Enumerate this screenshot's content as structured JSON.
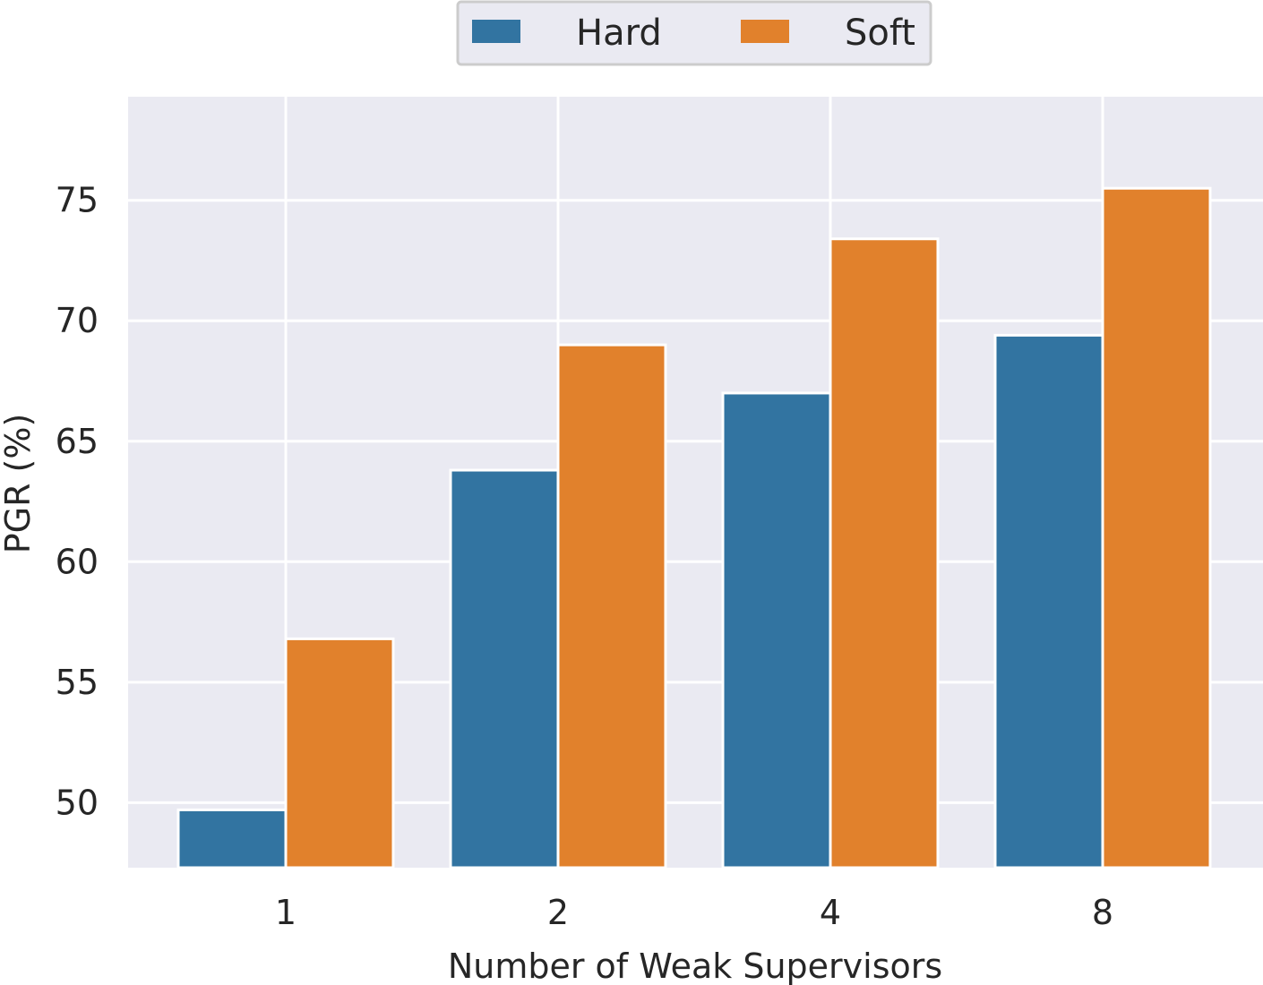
{
  "chart_data": {
    "type": "bar",
    "title": "",
    "xlabel": "Number of Weak Supervisors",
    "ylabel": "PGR (%)",
    "categories": [
      "1",
      "2",
      "4",
      "8"
    ],
    "series": [
      {
        "name": "Hard",
        "color": "#3274a1",
        "values": [
          49.7,
          63.8,
          67.0,
          69.4
        ]
      },
      {
        "name": "Soft",
        "color": "#e1812c",
        "values": [
          56.8,
          69.0,
          73.4,
          75.5
        ]
      }
    ],
    "ylim": [
      47.3,
      79.3
    ],
    "yticks": [
      50,
      55,
      60,
      65,
      70,
      75
    ],
    "grid": true,
    "legend": {
      "placement": "top-center",
      "entries": [
        "Hard",
        "Soft"
      ]
    },
    "background_color": "#eaeaf2"
  }
}
